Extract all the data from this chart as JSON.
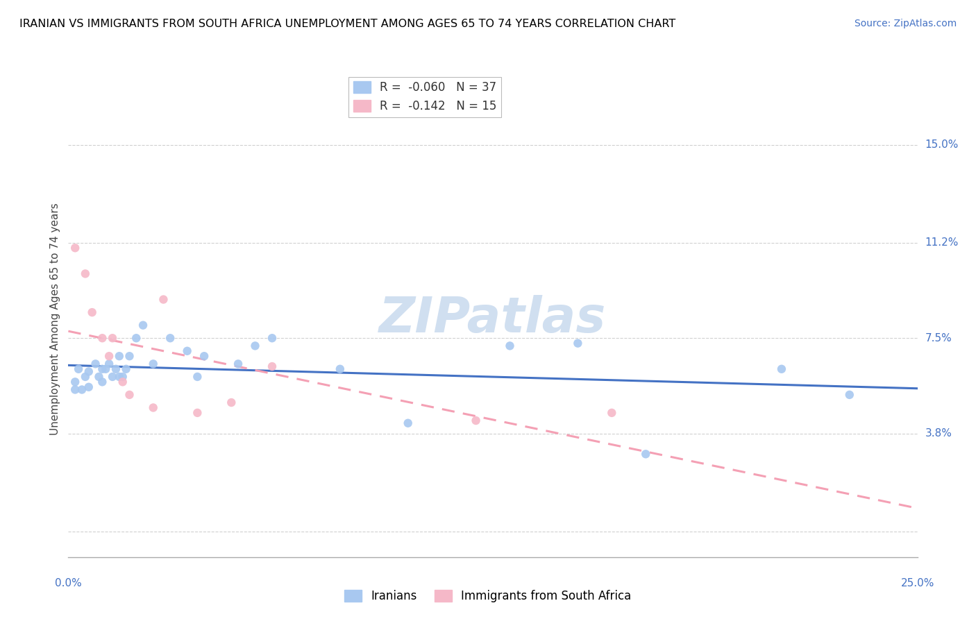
{
  "title": "IRANIAN VS IMMIGRANTS FROM SOUTH AFRICA UNEMPLOYMENT AMONG AGES 65 TO 74 YEARS CORRELATION CHART",
  "source": "Source: ZipAtlas.com",
  "ylabel": "Unemployment Among Ages 65 to 74 years",
  "xlim": [
    0.0,
    0.25
  ],
  "ylim": [
    -0.01,
    0.175
  ],
  "ytick_vals": [
    0.0,
    0.038,
    0.075,
    0.112,
    0.15
  ],
  "ytick_labels": [
    "",
    "3.8%",
    "7.5%",
    "11.2%",
    "15.0%"
  ],
  "xtick_vals": [
    0.0,
    0.25
  ],
  "xtick_labels": [
    "0.0%",
    "25.0%"
  ],
  "legend_entries": [
    {
      "label": "R =  -0.060   N = 37",
      "color": "#a8c8f0"
    },
    {
      "label": "R =  -0.142   N = 15",
      "color": "#f5b8c8"
    }
  ],
  "iranians_x": [
    0.002,
    0.002,
    0.003,
    0.004,
    0.005,
    0.006,
    0.006,
    0.008,
    0.009,
    0.01,
    0.01,
    0.011,
    0.012,
    0.013,
    0.014,
    0.015,
    0.015,
    0.016,
    0.017,
    0.018,
    0.02,
    0.022,
    0.025,
    0.03,
    0.035,
    0.038,
    0.04,
    0.05,
    0.055,
    0.06,
    0.08,
    0.1,
    0.13,
    0.15,
    0.17,
    0.21,
    0.23
  ],
  "iranians_y": [
    0.058,
    0.055,
    0.063,
    0.055,
    0.06,
    0.062,
    0.056,
    0.065,
    0.06,
    0.063,
    0.058,
    0.063,
    0.065,
    0.06,
    0.063,
    0.068,
    0.06,
    0.06,
    0.063,
    0.068,
    0.075,
    0.08,
    0.065,
    0.075,
    0.07,
    0.06,
    0.068,
    0.065,
    0.072,
    0.075,
    0.063,
    0.042,
    0.072,
    0.073,
    0.03,
    0.063,
    0.053
  ],
  "southafrica_x": [
    0.002,
    0.005,
    0.007,
    0.01,
    0.012,
    0.013,
    0.016,
    0.018,
    0.025,
    0.028,
    0.038,
    0.048,
    0.06,
    0.12,
    0.16
  ],
  "southafrica_y": [
    0.11,
    0.1,
    0.085,
    0.075,
    0.068,
    0.075,
    0.058,
    0.053,
    0.048,
    0.09,
    0.046,
    0.05,
    0.064,
    0.043,
    0.046
  ],
  "blue_dot_color": "#a8c8f0",
  "pink_dot_color": "#f5b8c8",
  "blue_line_color": "#4472c4",
  "pink_line_color": "#f4a0b4",
  "grid_color": "#d0d0d0",
  "watermark": "ZIPatlas",
  "watermark_color": "#d0dff0",
  "title_fontsize": 11.5,
  "label_fontsize": 11,
  "tick_fontsize": 11,
  "source_fontsize": 10
}
